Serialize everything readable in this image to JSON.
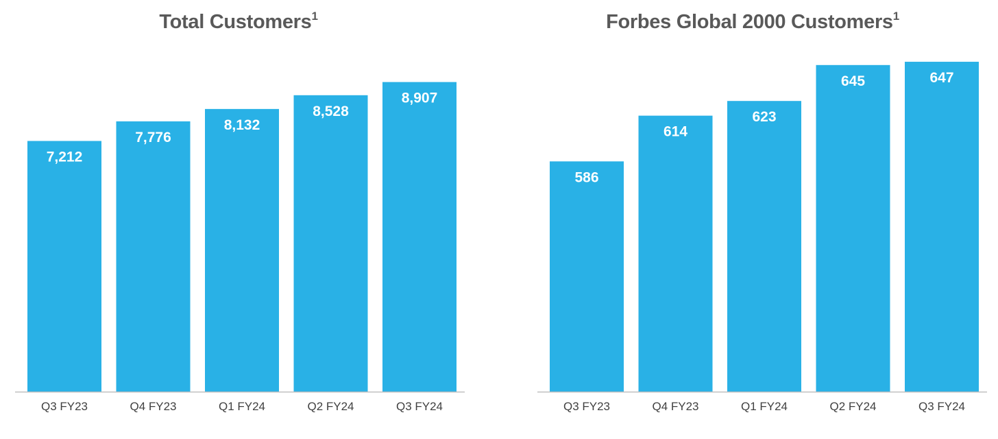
{
  "chart_data": [
    {
      "type": "bar",
      "title": "Total Customers",
      "title_superscript": "1",
      "categories": [
        "Q3 FY23",
        "Q4 FY23",
        "Q1 FY24",
        "Q2 FY24",
        "Q3 FY24"
      ],
      "values": [
        7212,
        7776,
        8132,
        8528,
        8907
      ],
      "value_labels": [
        "7,212",
        "7,776",
        "8,132",
        "8,528",
        "8,907"
      ],
      "xlabel": "",
      "ylabel": "",
      "ylim": [
        0,
        9866
      ],
      "grid": false,
      "legend": "none",
      "bar_color": "#29B1E6",
      "axis_color": "#BFBFBF"
    },
    {
      "type": "bar",
      "title": "Forbes Global 2000 Customers",
      "title_superscript": "1",
      "categories": [
        "Q3 FY23",
        "Q4 FY23",
        "Q1 FY24",
        "Q2 FY24",
        "Q3 FY24"
      ],
      "values": [
        586,
        614,
        623,
        645,
        647
      ],
      "value_labels": [
        "586",
        "614",
        "623",
        "645",
        "647"
      ],
      "xlabel": "",
      "ylabel": "",
      "ylim": [
        445,
        655
      ],
      "grid": false,
      "legend": "none",
      "bar_color": "#29B1E6",
      "axis_color": "#BFBFBF"
    }
  ]
}
